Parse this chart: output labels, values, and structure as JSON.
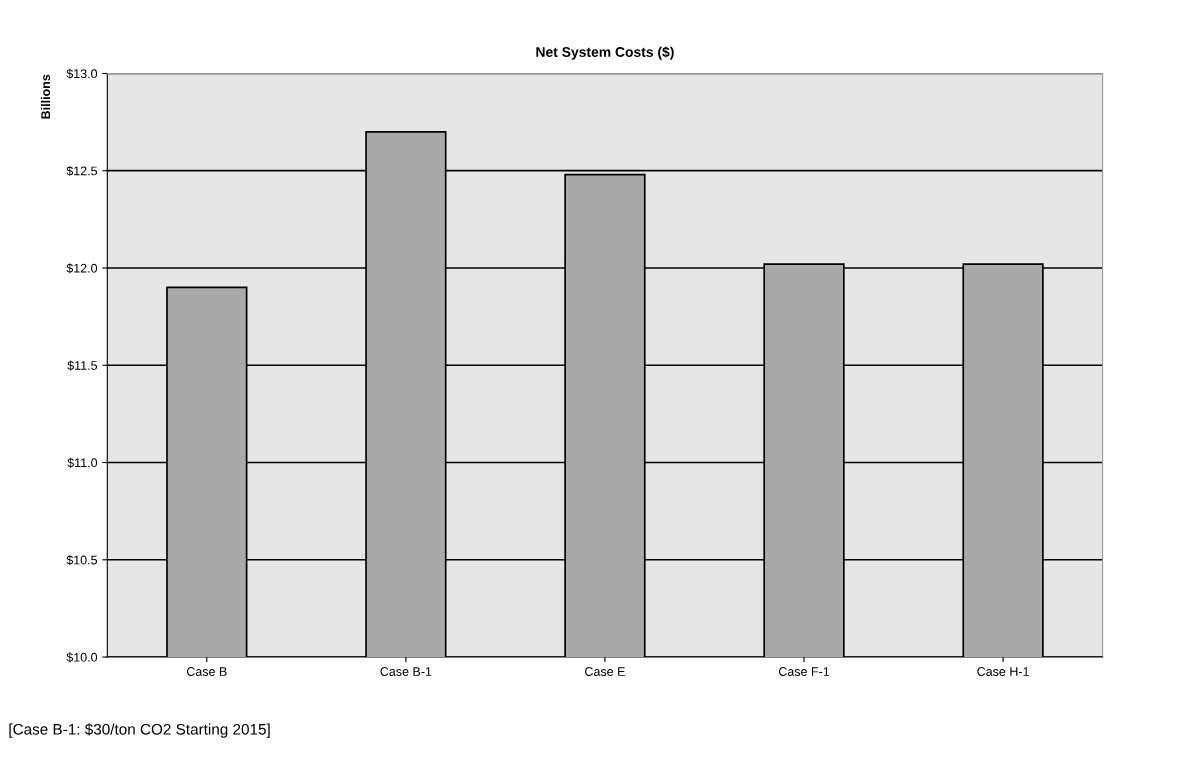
{
  "chart_data": {
    "type": "bar",
    "title": "Net System Costs ($)",
    "ylabel": "Billions",
    "categories": [
      "Case B",
      "Case B-1",
      "Case E",
      "Case F-1",
      "Case H-1"
    ],
    "values": [
      11.9,
      12.7,
      12.48,
      12.02,
      12.02
    ],
    "color": "#a9a9a9",
    "ylim": [
      10.0,
      13.0
    ],
    "yticks": [
      {
        "value": 10.0,
        "label": "$10.0"
      },
      {
        "value": 10.5,
        "label": "$10.5"
      },
      {
        "value": 11.0,
        "label": "$11.0"
      },
      {
        "value": 11.5,
        "label": "$11.5"
      },
      {
        "value": 12.0,
        "label": "$12.0"
      },
      {
        "value": 12.5,
        "label": "$12.5"
      },
      {
        "value": 13.0,
        "label": "$13.0"
      }
    ],
    "grid": "y",
    "annotations": [
      "[Case B-1: $30/ton CO2 Starting 2015]"
    ]
  }
}
